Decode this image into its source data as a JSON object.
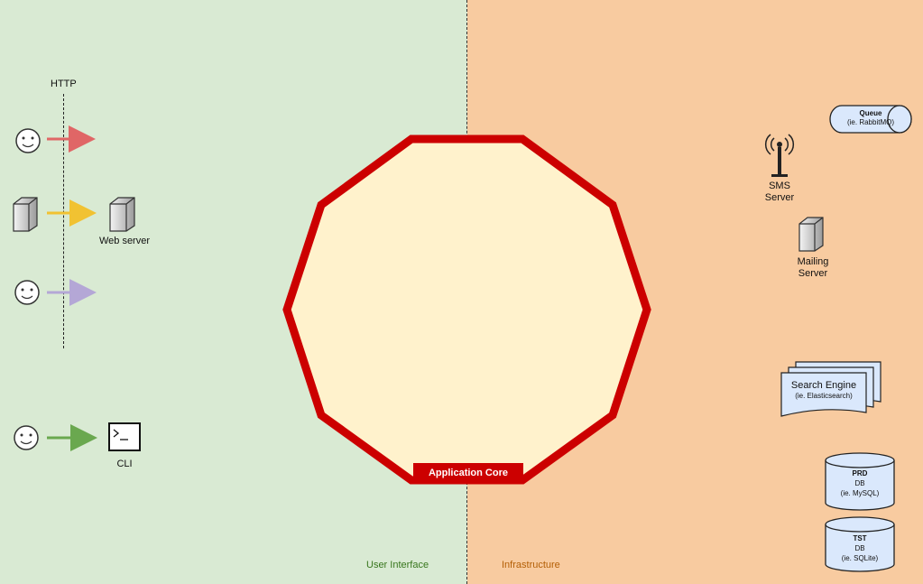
{
  "zones": {
    "ui_label": "User Interface",
    "infra_label": "Infrastructure"
  },
  "core": {
    "label": "Application Core"
  },
  "left": {
    "http_label": "HTTP",
    "web_server_label": "Web server",
    "cli_label": "CLI"
  },
  "right": {
    "queue": {
      "title": "Queue",
      "subtitle": "(ie. RabbitMQ)"
    },
    "sms": {
      "line1": "SMS",
      "line2": "Server"
    },
    "mailing": {
      "line1": "Mailing",
      "line2": "Server"
    },
    "search": {
      "title": "Search Engine",
      "subtitle": "(ie. Elasticsearch)"
    },
    "prd_db": {
      "title": "PRD",
      "line2": "DB",
      "line3": "(ie. MySQL)"
    },
    "tst_db": {
      "title": "TST",
      "line2": "DB",
      "line3": "(ie. SQLite)"
    }
  },
  "colors": {
    "ui_bg": "#d9ead3",
    "infra_bg": "#f8cba0",
    "core_fill": "#fff2cc",
    "core_border": "#cc0000",
    "arrow_red": "#e06666",
    "arrow_yellow": "#f1c232",
    "arrow_purple": "#b4a7d6",
    "arrow_green": "#6aa84f",
    "node_fill": "#dae8fc"
  }
}
